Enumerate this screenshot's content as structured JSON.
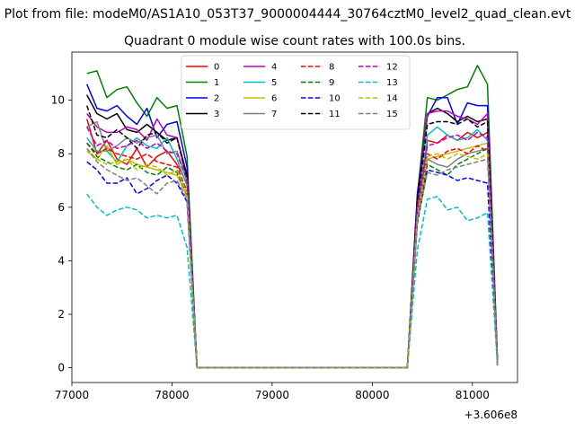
{
  "figure": {
    "suptitle": "Plot from file: modeM0/AS1A10_053T37_9000004444_30764cztM0_level2_quad_clean.evt"
  },
  "chart_data": {
    "type": "line",
    "title": "Quadrant 0 module wise count rates with 100.0s bins.",
    "xlabel": "",
    "ylabel": "",
    "xlim": [
      77000,
      81450
    ],
    "ylim": [
      -0.55,
      11.8
    ],
    "x_offset_label": "+3.606e8",
    "x_ticks": [
      77000,
      78000,
      79000,
      80000,
      81000
    ],
    "x_tick_labels": [
      "77000",
      "78000",
      "79000",
      "80000",
      "81000"
    ],
    "y_ticks": [
      0,
      2,
      4,
      6,
      8,
      10
    ],
    "y_tick_labels": [
      "0",
      "2",
      "4",
      "6",
      "8",
      "10"
    ],
    "x": [
      77150,
      77250,
      77350,
      77450,
      77550,
      77650,
      77750,
      77850,
      77950,
      78050,
      78150,
      78250,
      78350,
      80350,
      80450,
      80550,
      80650,
      80750,
      80850,
      80950,
      81050,
      81150,
      81250
    ],
    "legend": {
      "location": "upper center",
      "ncol": 4
    },
    "series": [
      {
        "name": "0",
        "color": "#ff0000",
        "dash": "solid",
        "values": [
          9.3,
          8.0,
          8.5,
          7.8,
          7.6,
          8.2,
          7.5,
          7.9,
          8.1,
          7.6,
          6.9,
          0,
          0,
          0,
          5.5,
          8.5,
          8.4,
          8.7,
          8.5,
          8.8,
          8.6,
          8.8,
          0.2
        ]
      },
      {
        "name": "1",
        "color": "#008000",
        "dash": "solid",
        "values": [
          11.0,
          11.1,
          10.1,
          10.4,
          10.5,
          9.9,
          9.4,
          10.1,
          9.7,
          9.8,
          7.9,
          0,
          0,
          0,
          6.4,
          10.1,
          10.0,
          10.2,
          10.4,
          10.5,
          11.3,
          10.6,
          0.3
        ]
      },
      {
        "name": "2",
        "color": "#0000ff",
        "dash": "solid",
        "values": [
          10.6,
          9.7,
          9.6,
          9.8,
          9.4,
          9.1,
          9.7,
          8.6,
          9.1,
          9.2,
          7.5,
          0,
          0,
          0,
          6.5,
          9.4,
          10.1,
          10.1,
          9.1,
          9.9,
          9.8,
          9.8,
          0.2
        ]
      },
      {
        "name": "3",
        "color": "#000000",
        "dash": "solid",
        "values": [
          10.2,
          9.5,
          9.3,
          9.5,
          8.9,
          8.8,
          9.1,
          8.8,
          8.5,
          8.6,
          7.2,
          0,
          0,
          0,
          6.3,
          9.5,
          9.7,
          9.5,
          9.2,
          9.4,
          9.2,
          9.3,
          0.1
        ]
      },
      {
        "name": "4",
        "color": "#bf00bf",
        "dash": "solid",
        "values": [
          9.5,
          9.0,
          8.8,
          8.8,
          9.0,
          8.9,
          8.5,
          9.3,
          8.7,
          8.6,
          7.0,
          0,
          0,
          0,
          6.0,
          9.5,
          9.6,
          9.6,
          9.4,
          9.3,
          9.1,
          9.5,
          0.2
        ]
      },
      {
        "name": "5",
        "color": "#00bfbf",
        "dash": "solid",
        "values": [
          8.6,
          8.1,
          8.1,
          7.7,
          8.3,
          8.6,
          8.3,
          8.2,
          8.6,
          7.8,
          6.8,
          0,
          0,
          0,
          5.8,
          8.7,
          9.0,
          8.7,
          8.5,
          8.6,
          8.9,
          8.5,
          0.1
        ]
      },
      {
        "name": "6",
        "color": "#bfbf00",
        "dash": "solid",
        "values": [
          8.1,
          7.8,
          8.3,
          7.6,
          7.8,
          7.6,
          7.5,
          7.4,
          7.3,
          7.2,
          6.4,
          0,
          0,
          0,
          5.5,
          7.8,
          7.9,
          8.0,
          8.1,
          8.2,
          8.3,
          8.4,
          0.1
        ]
      },
      {
        "name": "7",
        "color": "#808080",
        "dash": "solid",
        "values": [
          9.0,
          9.2,
          8.1,
          8.3,
          8.6,
          8.4,
          8.6,
          8.7,
          8.0,
          8.1,
          7.0,
          0,
          0,
          0,
          5.9,
          7.8,
          7.6,
          7.5,
          7.8,
          8.0,
          8.1,
          8.2,
          0.1
        ]
      },
      {
        "name": "8",
        "color": "#ff0000",
        "dash": "dashed",
        "values": [
          8.4,
          8.0,
          8.2,
          8.0,
          7.9,
          7.8,
          8.0,
          7.7,
          7.6,
          7.5,
          6.6,
          0,
          0,
          0,
          5.7,
          8.0,
          7.8,
          8.1,
          8.2,
          8.0,
          8.3,
          8.1,
          0.1
        ]
      },
      {
        "name": "9",
        "color": "#008000",
        "dash": "dashed",
        "values": [
          8.4,
          7.9,
          7.7,
          7.5,
          7.4,
          7.6,
          7.3,
          7.2,
          7.5,
          7.3,
          6.5,
          0,
          0,
          0,
          5.6,
          7.6,
          7.4,
          7.2,
          7.6,
          7.8,
          8.0,
          8.2,
          0.1
        ]
      },
      {
        "name": "10",
        "color": "#0000ff",
        "dash": "dashed",
        "values": [
          7.7,
          7.4,
          6.9,
          6.9,
          7.1,
          6.5,
          6.7,
          7.0,
          7.2,
          6.9,
          6.2,
          0,
          0,
          0,
          5.4,
          7.4,
          7.3,
          7.2,
          7.0,
          7.1,
          7.0,
          6.9,
          0.1
        ]
      },
      {
        "name": "11",
        "color": "#000000",
        "dash": "dashed",
        "values": [
          9.8,
          8.7,
          8.6,
          8.9,
          8.6,
          8.2,
          8.7,
          8.8,
          8.4,
          8.6,
          7.1,
          0,
          0,
          0,
          6.1,
          9.1,
          9.2,
          9.2,
          9.1,
          9.3,
          9.0,
          9.2,
          0.2
        ]
      },
      {
        "name": "12",
        "color": "#bf00bf",
        "dash": "dashed",
        "values": [
          9.0,
          8.3,
          8.5,
          8.2,
          8.3,
          8.5,
          8.2,
          8.4,
          8.1,
          8.0,
          7.0,
          0,
          0,
          0,
          6.0,
          8.3,
          8.4,
          8.6,
          8.7,
          8.5,
          8.8,
          8.6,
          0.2
        ]
      },
      {
        "name": "13",
        "color": "#00bfbf",
        "dash": "dashed",
        "values": [
          6.5,
          6.0,
          5.7,
          5.9,
          6.0,
          5.9,
          5.6,
          5.7,
          5.6,
          5.7,
          4.5,
          0,
          0,
          0,
          4.4,
          6.3,
          6.4,
          5.9,
          6.0,
          5.5,
          5.6,
          5.8,
          0.1
        ]
      },
      {
        "name": "14",
        "color": "#bfbf00",
        "dash": "dashed",
        "values": [
          8.2,
          7.8,
          7.6,
          7.7,
          7.8,
          7.4,
          7.6,
          7.5,
          7.2,
          7.4,
          6.5,
          0,
          0,
          0,
          5.6,
          7.9,
          8.0,
          7.8,
          8.0,
          7.9,
          7.8,
          8.0,
          0.1
        ]
      },
      {
        "name": "15",
        "color": "#808080",
        "dash": "dashed",
        "values": [
          8.2,
          7.7,
          7.4,
          7.2,
          7.0,
          7.1,
          6.8,
          6.5,
          6.9,
          7.0,
          6.3,
          0,
          0,
          0,
          5.5,
          7.3,
          7.2,
          7.4,
          7.5,
          7.6,
          7.7,
          7.8,
          0.1
        ]
      }
    ]
  }
}
